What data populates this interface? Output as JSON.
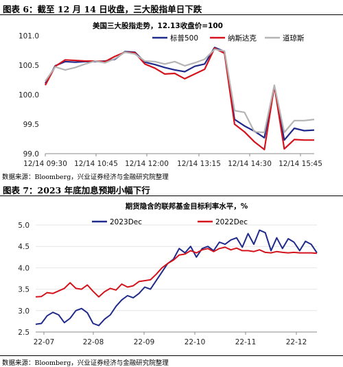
{
  "figure1": {
    "heading": "图表 6：截至 12 月 14 日收盘，三大股指单日下跌",
    "source": "数据来源：Bloomberg，兴业证券经济与金融研究院整理"
  },
  "figure2": {
    "heading": "图表 7：2023 年底加息预期小幅下行",
    "source": "数据来源：Bloomberg，兴业证券经济与金融研究院整理"
  },
  "colors": {
    "navy": "#1f2a8a",
    "red": "#d4131c",
    "gray": "#b4b4b4"
  },
  "chart_data": [
    {
      "type": "line",
      "title": "美国三大股指走势，12.13收盘价=100",
      "xlabel": "",
      "ylabel": "",
      "x_ticks": [
        "12/14 09:30",
        "12/14 10:45",
        "12/14 12:00",
        "12/14 13:15",
        "12/14 14:30",
        "12/14 15:45"
      ],
      "y_ticks": [
        "99.0",
        "99.5",
        "100.0",
        "100.5",
        "101.0"
      ],
      "ylim": [
        99.0,
        101.0
      ],
      "legend": "top-right",
      "series": [
        {
          "name": "标普500",
          "color": "#1f2a8a",
          "values": [
            100.19,
            100.49,
            100.56,
            100.55,
            100.56,
            100.56,
            100.57,
            100.6,
            100.73,
            100.72,
            100.55,
            100.51,
            100.46,
            100.42,
            100.39,
            100.48,
            100.52,
            100.8,
            100.73,
            99.58,
            99.47,
            99.38,
            99.27,
            100.14,
            99.23,
            99.43,
            99.39,
            99.4
          ]
        },
        {
          "name": "纳斯达克",
          "color": "#d4131c",
          "values": [
            100.16,
            100.48,
            100.59,
            100.58,
            100.57,
            100.57,
            100.56,
            100.65,
            100.72,
            100.71,
            100.52,
            100.45,
            100.35,
            100.36,
            100.27,
            100.35,
            100.43,
            100.79,
            100.7,
            99.5,
            99.37,
            99.2,
            99.07,
            100.15,
            99.08,
            99.24,
            99.23,
            99.23
          ]
        },
        {
          "name": "道琼斯",
          "color": "#b4b4b4",
          "values": [
            100.23,
            100.47,
            100.42,
            100.46,
            100.52,
            100.57,
            100.54,
            100.61,
            100.72,
            100.69,
            100.57,
            100.56,
            100.52,
            100.56,
            100.49,
            100.54,
            100.6,
            100.77,
            100.74,
            99.73,
            99.7,
            99.37,
            99.36,
            100.16,
            99.36,
            99.56,
            99.56,
            99.58
          ]
        }
      ]
    },
    {
      "type": "line",
      "title": "期货隐含的联邦基金目标利率水平，%",
      "xlabel": "",
      "ylabel": "",
      "x_ticks": [
        "22-07",
        "22-08",
        "22-09",
        "22-10",
        "22-11",
        "22-12"
      ],
      "y_ticks": [
        "2.5",
        "3.0",
        "3.5",
        "4.0",
        "4.5",
        "5.0"
      ],
      "ylim": [
        2.5,
        5.0
      ],
      "legend": "top",
      "series": [
        {
          "name": "2023Dec",
          "color": "#1f2a8a",
          "values": [
            2.68,
            2.7,
            2.88,
            2.96,
            2.9,
            2.72,
            2.82,
            3.0,
            3.05,
            2.95,
            2.7,
            2.65,
            2.8,
            2.9,
            3.1,
            3.25,
            3.35,
            3.3,
            3.4,
            3.55,
            3.5,
            3.7,
            3.9,
            4.1,
            4.2,
            4.45,
            4.35,
            4.5,
            4.25,
            4.45,
            4.5,
            4.4,
            4.6,
            4.55,
            4.65,
            4.7,
            4.48,
            4.8,
            4.55,
            4.88,
            4.82,
            4.4,
            4.7,
            4.45,
            4.68,
            4.6,
            4.4,
            4.62,
            4.55,
            4.35
          ]
        },
        {
          "name": "2022Dec",
          "color": "#d4131c",
          "values": [
            3.32,
            3.33,
            3.42,
            3.4,
            3.46,
            3.52,
            3.65,
            3.52,
            3.5,
            3.6,
            3.45,
            3.32,
            3.44,
            3.52,
            3.48,
            3.62,
            3.55,
            3.58,
            3.68,
            3.7,
            3.72,
            3.85,
            4.0,
            4.1,
            4.18,
            4.3,
            4.32,
            4.4,
            4.35,
            4.42,
            4.45,
            4.38,
            4.45,
            4.48,
            4.42,
            4.46,
            4.4,
            4.4,
            4.38,
            4.42,
            4.36,
            4.35,
            4.38,
            4.36,
            4.35,
            4.36,
            4.35,
            4.35,
            4.35,
            4.34
          ]
        }
      ]
    }
  ]
}
